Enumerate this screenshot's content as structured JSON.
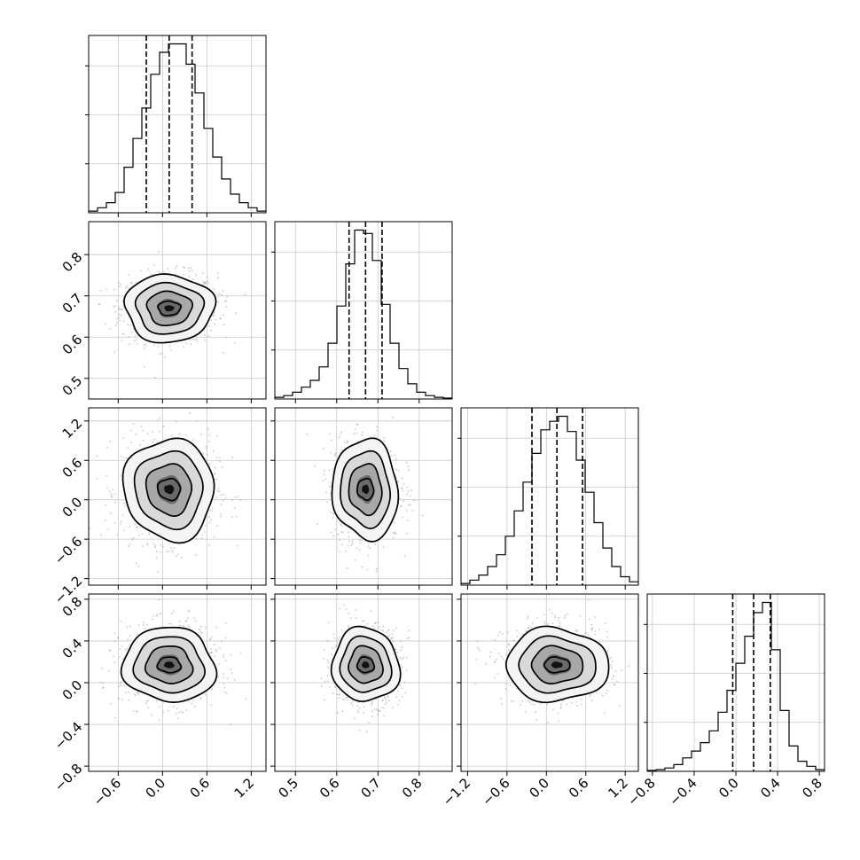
{
  "chart_data": {
    "type": "corner",
    "grid": true,
    "params": [
      {
        "range": [
          -1.0,
          1.4
        ],
        "ticks": [
          -0.6,
          0.0,
          0.6,
          1.2
        ],
        "tick_labels": [
          "−0.6",
          "0.0",
          "0.6",
          "1.2"
        ],
        "quantiles": [
          -0.22,
          0.09,
          0.4
        ],
        "mean": 0.09,
        "std": 0.31,
        "hist": [
          0.01,
          0.03,
          0.06,
          0.12,
          0.27,
          0.44,
          0.62,
          0.82,
          0.95,
          1.0,
          1.0,
          0.88,
          0.71,
          0.5,
          0.33,
          0.2,
          0.11,
          0.06,
          0.03,
          0.01
        ]
      },
      {
        "range": [
          0.45,
          0.88
        ],
        "ticks": [
          0.5,
          0.6,
          0.7,
          0.8
        ],
        "tick_labels": [
          "0.5",
          "0.6",
          "0.7",
          "0.8"
        ],
        "quantiles": [
          0.63,
          0.67,
          0.71
        ],
        "mean": 0.67,
        "std": 0.04,
        "hist": [
          0.01,
          0.02,
          0.04,
          0.07,
          0.11,
          0.19,
          0.33,
          0.55,
          0.8,
          1.0,
          0.98,
          0.82,
          0.56,
          0.33,
          0.18,
          0.09,
          0.04,
          0.02,
          0.01,
          0.005
        ]
      },
      {
        "range": [
          -1.3,
          1.4
        ],
        "ticks": [
          -1.2,
          -0.6,
          0.0,
          0.6,
          1.2
        ],
        "tick_labels": [
          "−1.2",
          "−0.6",
          "0.0",
          "0.6",
          "1.2"
        ],
        "quantiles": [
          -0.22,
          0.16,
          0.55
        ],
        "mean": 0.16,
        "std": 0.38,
        "hist": [
          0.01,
          0.03,
          0.06,
          0.11,
          0.18,
          0.29,
          0.44,
          0.61,
          0.78,
          0.92,
          0.97,
          1.0,
          0.91,
          0.74,
          0.55,
          0.37,
          0.22,
          0.11,
          0.05,
          0.02
        ]
      },
      {
        "range": [
          -0.85,
          0.85
        ],
        "ticks": [
          -0.8,
          -0.4,
          0.0,
          0.4,
          0.8
        ],
        "tick_labels": [
          "−0.8",
          "−0.4",
          "0.0",
          "0.4",
          "0.8"
        ],
        "quantiles": [
          -0.03,
          0.17,
          0.33
        ],
        "mean": 0.17,
        "std": 0.18,
        "hist": [
          0.005,
          0.01,
          0.02,
          0.04,
          0.08,
          0.12,
          0.17,
          0.24,
          0.35,
          0.48,
          0.64,
          0.8,
          0.94,
          1.0,
          0.72,
          0.36,
          0.15,
          0.06,
          0.03,
          0.01
        ]
      }
    ]
  }
}
